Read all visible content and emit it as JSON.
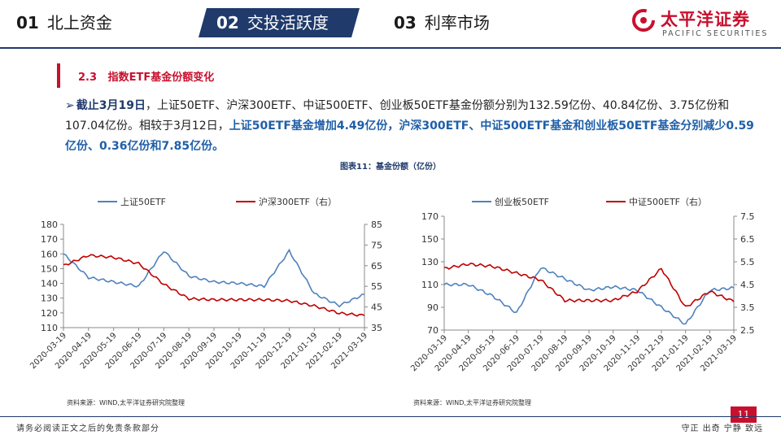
{
  "nav": {
    "items": [
      {
        "num": "01",
        "label": "北上资金"
      },
      {
        "num": "02",
        "label": "交投活跃度"
      },
      {
        "num": "03",
        "label": "利率市场"
      }
    ],
    "active_color": "#1f3a6b"
  },
  "logo": {
    "cn": "太平洋证券",
    "en": "PACIFIC SECURITIES",
    "brand_color": "#c8102e"
  },
  "section": {
    "num": "2.3",
    "title": "指数ETF基金份额变化"
  },
  "body": {
    "p1_bold": "截止3月19日",
    "p1_text": "，上证50ETF、沪深300ETF、中证500ETF、创业板50ETF基金份额分别为132.59亿份、40.84亿份、3.75亿份和107.04亿份。相较于3月12日，",
    "p1_highlight": "上证50ETF基金增加4.49亿份，沪深300ETF、中证500ETF基金和创业板50ETF基金分别减少0.59亿份、0.36亿份和7.85亿份。"
  },
  "figure_title": "图表11：基金份额（亿份）",
  "chart_data": [
    {
      "type": "line",
      "x": [
        "2020-03-19",
        "2020-04-19",
        "2020-05-19",
        "2020-06-19",
        "2020-07-19",
        "2020-08-19",
        "2020-09-19",
        "2020-10-19",
        "2020-11-19",
        "2020-12-19",
        "2021-01-19",
        "2021-02-19",
        "2021-03-19"
      ],
      "series": [
        {
          "name": "上证50ETF",
          "axis": "left",
          "color": "#4f81bd",
          "values": [
            160,
            144,
            141,
            138,
            162,
            145,
            141,
            140,
            138,
            162,
            133,
            125,
            132.59
          ]
        },
        {
          "name": "沪深300ETF（右）",
          "axis": "right",
          "color": "#c00000",
          "values": [
            65,
            70,
            69,
            66,
            56,
            49,
            48.5,
            48.5,
            48.5,
            48,
            45.5,
            42,
            40.84
          ]
        }
      ],
      "ylim_left": [
        110,
        180
      ],
      "yticks_left": [
        110,
        120,
        130,
        140,
        150,
        160,
        170,
        180
      ],
      "ylim_right": [
        35,
        85
      ],
      "yticks_right": [
        35,
        45,
        55,
        65,
        75,
        85
      ]
    },
    {
      "type": "line",
      "x": [
        "2020-03-19",
        "2020-04-19",
        "2020-05-19",
        "2020-06-19",
        "2020-07-19",
        "2020-08-19",
        "2020-09-19",
        "2020-10-19",
        "2020-11-19",
        "2020-12-19",
        "2021-01-19",
        "2021-02-19",
        "2021-03-19"
      ],
      "series": [
        {
          "name": "创业板50ETF",
          "axis": "left",
          "color": "#4f81bd",
          "values": [
            110,
            110,
            100,
            85,
            125,
            115,
            105,
            108,
            105,
            90,
            75,
            105,
            107.04
          ]
        },
        {
          "name": "中证500ETF（右）",
          "axis": "right",
          "color": "#c00000",
          "values": [
            5.2,
            5.4,
            5.3,
            5.0,
            4.7,
            3.8,
            3.8,
            3.8,
            4.2,
            5.2,
            3.5,
            4.2,
            3.75
          ]
        }
      ],
      "ylim_left": [
        70,
        170
      ],
      "yticks_left": [
        70,
        90,
        110,
        130,
        150,
        170
      ],
      "ylim_right": [
        2.5,
        7.5
      ],
      "yticks_right": [
        "2.5",
        "3.5",
        "4.5",
        "5.5",
        "6.5",
        "7.5"
      ]
    }
  ],
  "source_left": "资料来源：WIND,太平洋证券研究院整理",
  "source_right": "资料来源：WIND,太平洋证券研究院整理",
  "footer": {
    "left": "请务必阅读正文之后的免责条款部分",
    "right": "守正  出奇  宁静  致远",
    "page": "11"
  }
}
